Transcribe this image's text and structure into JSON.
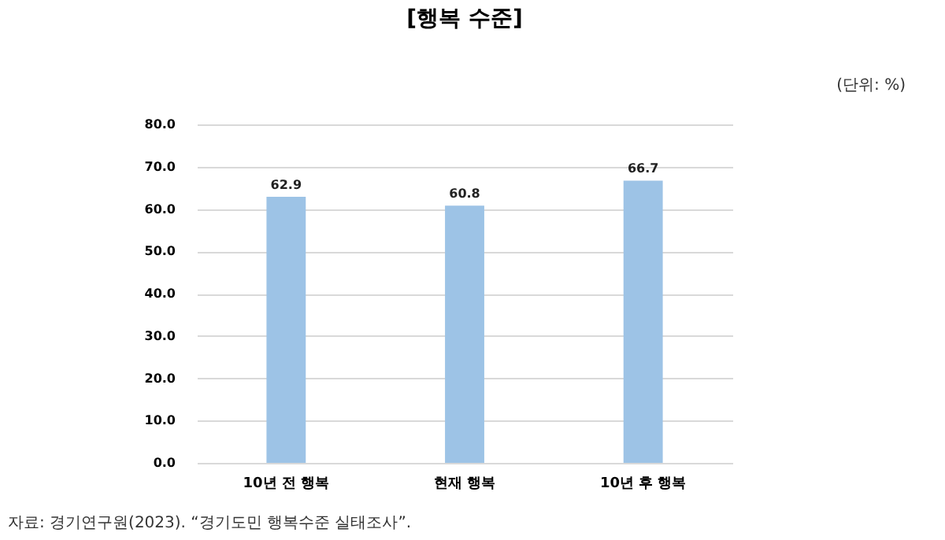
{
  "chart_data": {
    "type": "bar",
    "title": "[행복 수준]",
    "subtitle": "(단위: %)",
    "categories": [
      "10년 전 행복",
      "현재 행복",
      "10년 후 행복"
    ],
    "values": [
      62.9,
      60.8,
      66.7
    ],
    "color": "#9dc3e6",
    "ylim": [
      0,
      80
    ],
    "yticks": [
      {
        "value": 0,
        "label": "0.0"
      },
      {
        "value": 10,
        "label": "10.0"
      },
      {
        "value": 20,
        "label": "20.0"
      },
      {
        "value": 30,
        "label": "30.0"
      },
      {
        "value": 40,
        "label": "40.0"
      },
      {
        "value": 50,
        "label": "50.0"
      },
      {
        "value": 60,
        "label": "60.0"
      },
      {
        "value": 70,
        "label": "70.0"
      },
      {
        "value": 80,
        "label": "80.0"
      }
    ],
    "grid": "y",
    "data_labels": true,
    "annotations": [
      "자료: 경기연구원(2023). “경기도민 행복수준 실태조사”."
    ]
  }
}
